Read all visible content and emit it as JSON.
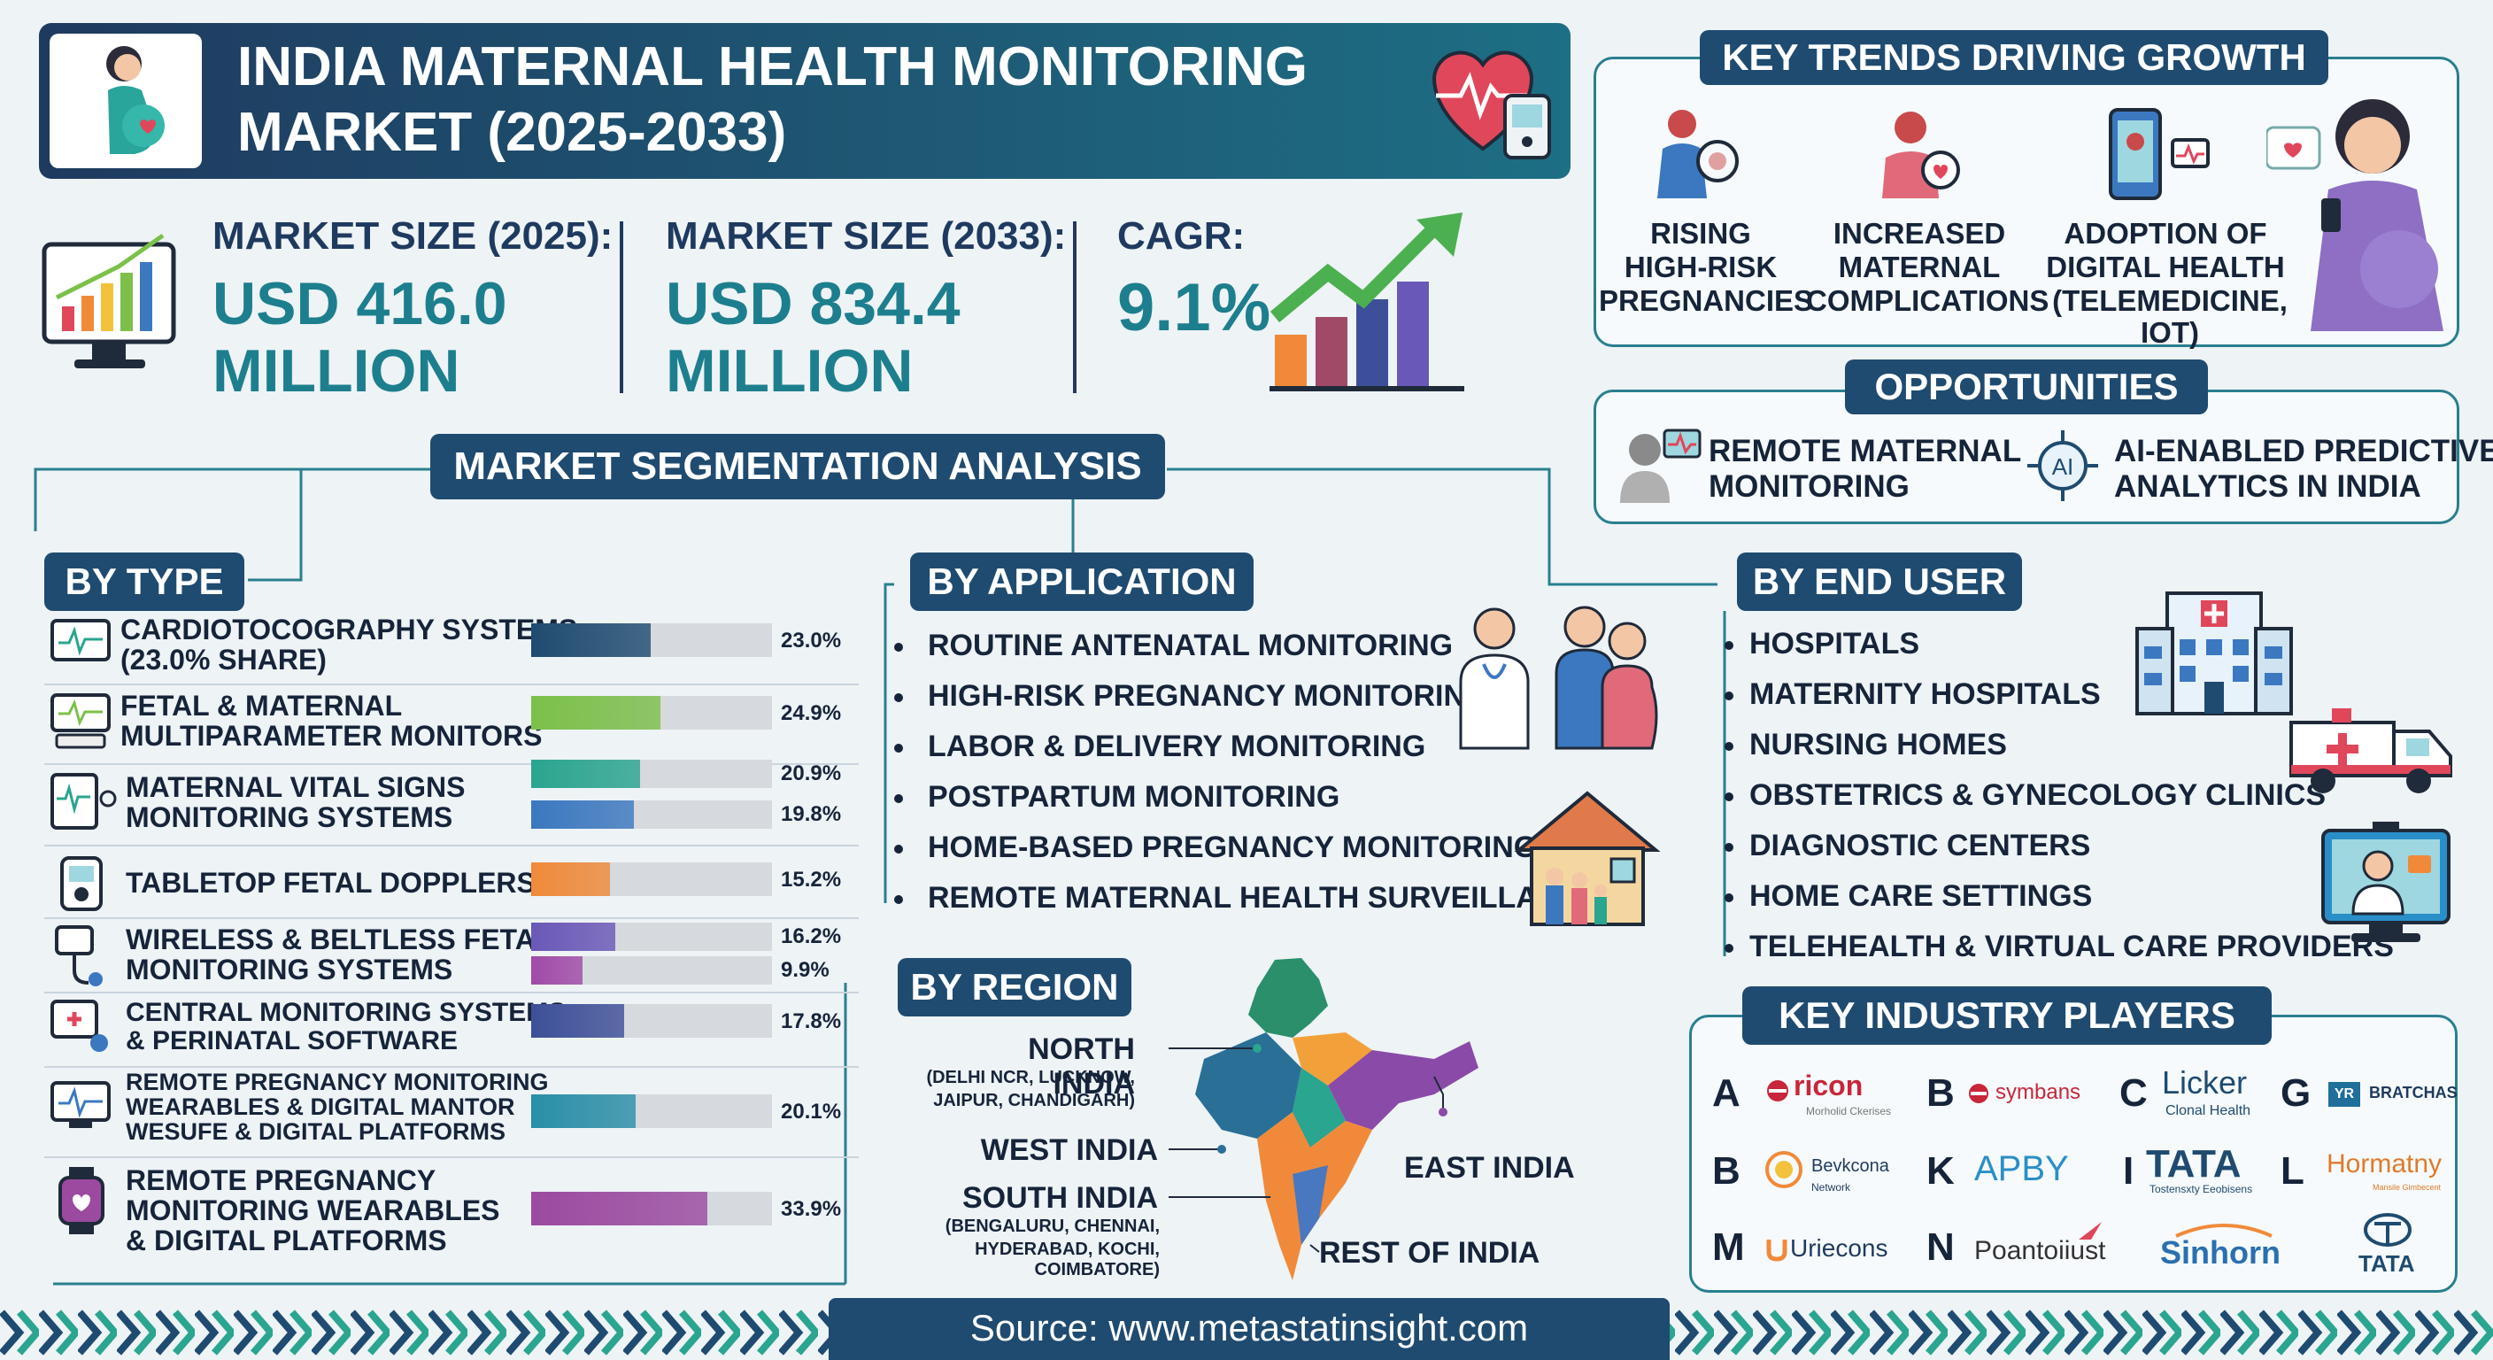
{
  "header": {
    "title_line1": "INDIA MATERNAL HEALTH MONITORING",
    "title_line2": "MARKET (2025-2033)"
  },
  "stats": [
    {
      "label": "MARKET SIZE (2025):",
      "value_line1": "USD 416.0",
      "value_line2": "MILLION"
    },
    {
      "label": "MARKET SIZE (2033):",
      "value_line1": "USD 834.4",
      "value_line2": "MILLION"
    },
    {
      "label": "CAGR:",
      "value_line1": "9.1%"
    }
  ],
  "trends": {
    "title": "KEY TRENDS DRIVING GROWTH",
    "items": [
      {
        "line1": "RISING",
        "line2": "HIGH-RISK",
        "line3": "PREGNANCIES"
      },
      {
        "line1": "INCREASED",
        "line2": "MATERNAL",
        "line3": "COMPLICATIONS"
      },
      {
        "line1": "ADOPTION OF",
        "line2": "DIGITAL HEALTH",
        "line3": "(TELEMEDICINE, IOT)"
      }
    ]
  },
  "opportunities": {
    "title": "OPPORTUNITIES",
    "items": [
      {
        "line1": "REMOTE MATERNAL",
        "line2": "MONITORING"
      },
      {
        "line1": "AI-ENABLED PREDICTIVE",
        "line2": "ANALYTICS IN INDIA"
      }
    ]
  },
  "segmentation_title": "MARKET SEGMENTATION ANALYSIS",
  "by_type": {
    "title": "BY TYPE",
    "rows": [
      {
        "line1": "CARDIOTOCOGRAPHY SYSTEMS",
        "line2": "(23.0% SHARE)",
        "bars": [
          {
            "value": 23.0,
            "label": "23.0%",
            "color": "#1f4b70"
          }
        ]
      },
      {
        "line1": "FETAL & MATERNAL",
        "line2": "MULTIPARAMETER MONITORS",
        "bars": [
          {
            "value": 24.9,
            "label": "24.9%",
            "color": "#7cc04a"
          }
        ]
      },
      {
        "line1": "MATERNAL VITAL SIGNS",
        "line2": "MONITORING SYSTEMS",
        "bars": [
          {
            "value": 20.9,
            "label": "20.9%",
            "color": "#2aa58f"
          },
          {
            "value": 19.8,
            "label": "19.8%",
            "color": "#3b78c0"
          }
        ]
      },
      {
        "line1": "TABLETOP FETAL DOPPLERS",
        "line2": "",
        "bars": [
          {
            "value": 15.2,
            "label": "15.2%",
            "color": "#f08a3a"
          }
        ]
      },
      {
        "line1": "WIRELESS & BELTLESS FETAL",
        "line2": "MONITORING SYSTEMS",
        "bars": [
          {
            "value": 16.2,
            "label": "16.2%",
            "color": "#6a58b8"
          },
          {
            "value": 9.9,
            "label": "9.9%",
            "color": "#a04aa8"
          }
        ]
      },
      {
        "line1": "CENTRAL MONITORING SYSTEMS",
        "line2": "& PERINATAL SOFTWARE",
        "bars": [
          {
            "value": 17.8,
            "label": "17.8%",
            "color": "#3d4f98"
          }
        ]
      },
      {
        "line1": "REMOTE PREGNANCY MONITORING",
        "line2": "WEARABLES & DIGITAL MANTOR",
        "line3": "WESUFE & DIGITAL PLATFORMS",
        "bars": [
          {
            "value": 20.1,
            "label": "20.1%",
            "color": "#2a8fa8"
          }
        ]
      },
      {
        "line1": "REMOTE PREGNANCY",
        "line2": "MONITORING WEARABLES",
        "line3": "& DIGITAL PLATFORMS",
        "bars": [
          {
            "value": 33.9,
            "label": "33.9%",
            "color": "#9b4aa0"
          }
        ]
      }
    ]
  },
  "by_application": {
    "title": "BY APPLICATION",
    "items": [
      "ROUTINE ANTENATAL MONITORING",
      "HIGH-RISK PREGNANCY MONITORING",
      "LABOR & DELIVERY MONITORING",
      "POSTPARTUM MONITORING",
      "HOME-BASED PREGNANCY MONITORING",
      "REMOTE MATERNAL HEALTH SURVEILLANCE"
    ]
  },
  "by_region": {
    "title": "BY REGION",
    "north": {
      "name": "NORTH INDIA",
      "sub1": "(DELHI NCR, LUCKNOW,",
      "sub2": "JAIPUR, CHANDIGARH)"
    },
    "west": {
      "name": "WEST INDIA"
    },
    "south": {
      "name": "SOUTH INDIA",
      "sub1": "(BENGALURU, CHENNAI,",
      "sub2": "HYDERABAD, KOCHI, COIMBATORE)"
    },
    "east": {
      "name": "EAST INDIA"
    },
    "rest": {
      "name": "REST OF INDIA"
    }
  },
  "by_end_user": {
    "title": "BY END USER",
    "items": [
      "HOSPITALS",
      "MATERNITY HOSPITALS",
      "NURSING HOMES",
      "OBSTETRICS & GYNECOLOGY CLINICS",
      "DIAGNOSTIC CENTERS",
      "HOME CARE SETTINGS",
      "TELEHEALTH & VIRTUAL CARE PROVIDERS"
    ]
  },
  "players": {
    "title": "KEY INDUSTRY PLAYERS",
    "rows": [
      [
        {
          "letter": "A",
          "name": "ricon",
          "sub": "Morholid Ckerises",
          "color": "#c8263a"
        },
        {
          "letter": "B",
          "name": "symbans",
          "color": "#c8263a"
        },
        {
          "letter": "C",
          "name": "Licker",
          "sub": "Clonal Health",
          "color": "#1f4b70"
        },
        {
          "letter": "G",
          "name": "BRATCHAS",
          "color": "#1f3a5f",
          "badge": "YR"
        }
      ],
      [
        {
          "letter": "B",
          "name": "Bevkcona",
          "sub": "Network",
          "color": "#1f3a5f"
        },
        {
          "letter": "K",
          "name": "APBY",
          "color": "#2a8fc8"
        },
        {
          "letter": "I",
          "name": "TATA",
          "sub": "Tostensxty Eeobisens",
          "color": "#1f4b70"
        },
        {
          "letter": "L",
          "name": "Hormatny",
          "sub": "Mansile Gimbecent",
          "color": "#e07a2a"
        }
      ],
      [
        {
          "letter": "M",
          "name": "Uriecons",
          "color": "#1f3a5f"
        },
        {
          "letter": "N",
          "name": "Poantoiiust",
          "color": "#333"
        },
        {
          "letter": "",
          "name": "Sinhorn",
          "color": "#2a6fb0"
        },
        {
          "letter": "",
          "name": "TATA",
          "color": "#1f4b70"
        }
      ]
    ]
  },
  "footer": {
    "source": "Source: www.metastatinsight.com"
  }
}
